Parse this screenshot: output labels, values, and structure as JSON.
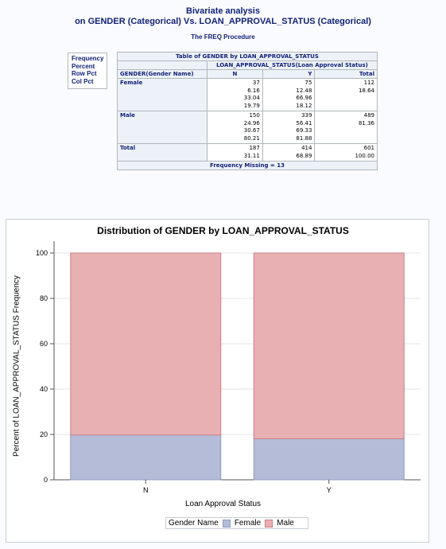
{
  "header": {
    "title_line1": "Bivariate analysis",
    "title_line2": "on GENDER (Categorical) Vs. LOAN_APPROVAL_STATUS (Categorical)",
    "procedure": "The FREQ Procedure"
  },
  "key": [
    "Frequency",
    "Percent",
    "Row Pct",
    "Col Pct"
  ],
  "table": {
    "title": "Table of GENDER by LOAN_APPROVAL_STATUS",
    "col_var": "LOAN_APPROVAL_STATUS(Loan Approval Status)",
    "row_var": "GENDER(Gender Name)",
    "columns": [
      "N",
      "Y",
      "Total"
    ],
    "rows": [
      {
        "label": "Female",
        "cells": [
          [
            "37",
            "6.16",
            "33.04",
            "19.79"
          ],
          [
            "75",
            "12.48",
            "66.96",
            "18.12"
          ],
          [
            "112",
            "18.64"
          ]
        ]
      },
      {
        "label": "Male",
        "cells": [
          [
            "150",
            "24.96",
            "30.67",
            "80.21"
          ],
          [
            "339",
            "56.41",
            "69.33",
            "81.88"
          ],
          [
            "489",
            "81.36"
          ]
        ]
      },
      {
        "label": "Total",
        "cells": [
          [
            "187",
            "31.11"
          ],
          [
            "414",
            "68.89"
          ],
          [
            "601",
            "100.00"
          ]
        ]
      }
    ],
    "footer": "Frequency Missing = 13"
  },
  "chart_data": {
    "type": "bar",
    "title": "Distribution of GENDER by LOAN_APPROVAL_STATUS",
    "xlabel": "Loan Approval Status",
    "ylabel": "Percent of LOAN_APPROVAL_STATUS Frequency",
    "categories": [
      "N",
      "Y"
    ],
    "stacked": true,
    "ylim": [
      0,
      100
    ],
    "yticks": [
      0,
      20,
      40,
      60,
      80,
      100
    ],
    "legend_title": "Gender Name",
    "legend_position": "bottom",
    "series": [
      {
        "name": "Female",
        "values": [
          19.79,
          18.12
        ],
        "color": "#b4bcd8",
        "edge": "#8c9cc0"
      },
      {
        "name": "Male",
        "values": [
          80.21,
          81.88
        ],
        "color": "#e8b0b2",
        "edge": "#cc7f86"
      }
    ]
  }
}
